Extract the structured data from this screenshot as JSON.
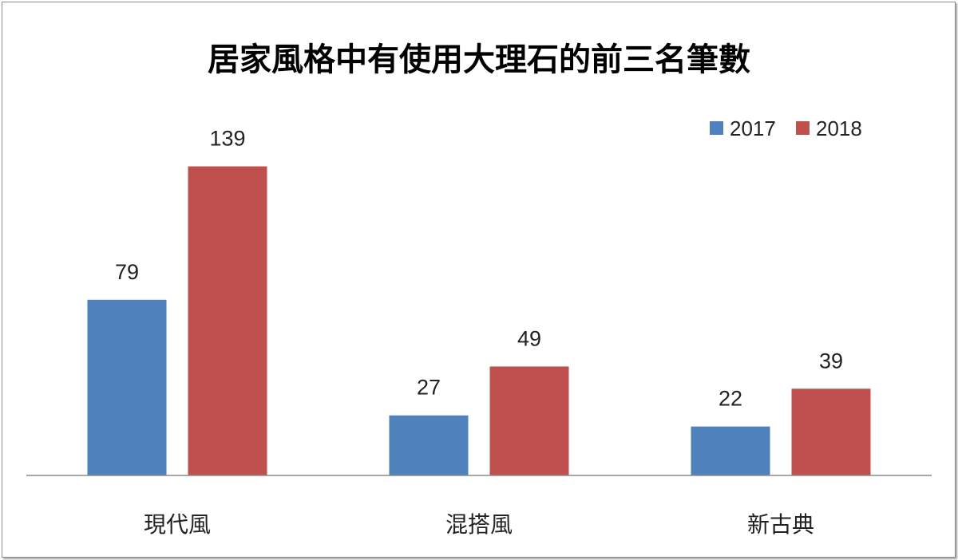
{
  "chart_data": {
    "type": "bar",
    "title": "居家風格中有使用大理石的前三名筆數",
    "xlabel": "",
    "ylabel": "",
    "categories": [
      "現代風",
      "混搭風",
      "新古典"
    ],
    "series": [
      {
        "name": "2017",
        "values": [
          79,
          27,
          22
        ],
        "color": "#4f81bd"
      },
      {
        "name": "2018",
        "values": [
          139,
          49,
          39
        ],
        "color": "#c0504d"
      }
    ],
    "ylim": [
      0,
      160
    ],
    "grid": false,
    "legend_position": "top-right",
    "data_labels": true
  }
}
